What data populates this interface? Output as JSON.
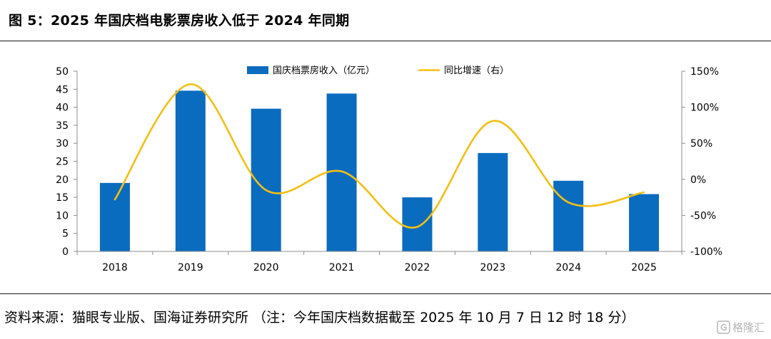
{
  "figure_title": "图  5：2025 年国庆档电影票房收入低于 2024 年同期",
  "source_note": "资料来源：猫眼专业版、国海证券研究所 （注：今年国庆档数据截至 2025 年 10 月 7 日 12 时 18 分）",
  "watermark": "格隆汇",
  "colors": {
    "bar": "#0a6cbf",
    "line": "#f4bf12",
    "rule": "#1a1a1a"
  },
  "chart_data": {
    "type": "bar",
    "categories": [
      "2018",
      "2019",
      "2020",
      "2021",
      "2022",
      "2023",
      "2024",
      "2025"
    ],
    "series": [
      {
        "name": "国庆档票房收入（亿元）",
        "type": "bar",
        "axis": "left",
        "values": [
          19.0,
          44.6,
          39.6,
          43.8,
          15.0,
          27.3,
          19.6,
          15.9
        ]
      },
      {
        "name": "同比增速（右）",
        "type": "line",
        "axis": "right",
        "smooth": true,
        "values": [
          -28,
          132,
          -15,
          11,
          -66,
          81,
          -32,
          -18
        ]
      }
    ],
    "y_left": {
      "min": 0,
      "max": 50,
      "step": 5,
      "ticks": [
        "0",
        "5",
        "10",
        "15",
        "20",
        "25",
        "30",
        "35",
        "40",
        "45",
        "50"
      ]
    },
    "y_right": {
      "min": -100,
      "max": 150,
      "step": 50,
      "ticks": [
        "-100%",
        "-50%",
        "0%",
        "50%",
        "100%",
        "150%"
      ]
    },
    "legend_position": "top-center",
    "grid": false
  }
}
